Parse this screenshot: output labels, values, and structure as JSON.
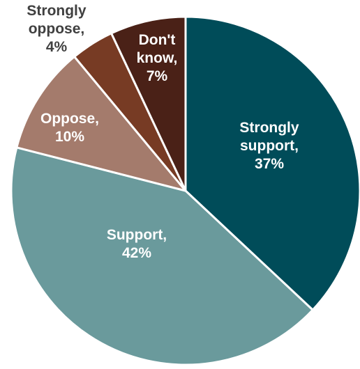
{
  "chart_data": {
    "type": "pie",
    "title": "",
    "slices": [
      {
        "category": "Strongly support",
        "value": 37,
        "label": "37%",
        "color": "#004c59",
        "text_color": "#ffffff"
      },
      {
        "category": "Support",
        "value": 42,
        "label": "42%",
        "color": "#6a9a9c",
        "text_color": "#ffffff"
      },
      {
        "category": "Oppose",
        "value": 10,
        "label": "10%",
        "color": "#a47b6c",
        "text_color": "#ffffff"
      },
      {
        "category": "Strongly oppose",
        "value": 4,
        "label": "4%",
        "color": "#773b24",
        "text_color": "#404040"
      },
      {
        "category": "Don't know",
        "value": 7,
        "label": "7%",
        "color": "#4a2117",
        "text_color": "#ffffff"
      }
    ],
    "start_angle_deg": 0,
    "direction": "clockwise",
    "legend": "none"
  }
}
